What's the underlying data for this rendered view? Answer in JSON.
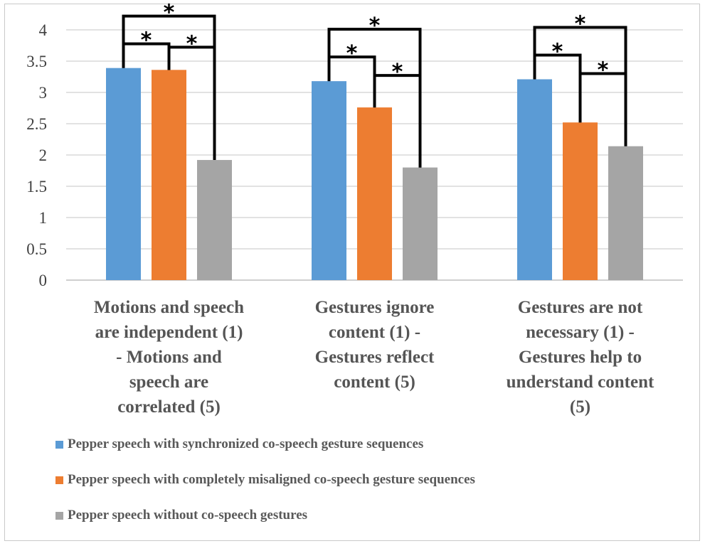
{
  "chart_data": {
    "type": "bar",
    "title": "",
    "xlabel": "",
    "ylabel": "",
    "ylim": [
      0,
      4
    ],
    "yticks": [
      "0",
      "0.5",
      "1",
      "1.5",
      "2",
      "2.5",
      "3",
      "3.5",
      "4"
    ],
    "grid": true,
    "legend_position": "bottom",
    "categories": [
      [
        "Motions and speech",
        "are independent (1)",
        "- Motions and",
        "speech are",
        "correlated (5)"
      ],
      [
        "Gestures ignore",
        "content (1) -",
        "Gestures reflect",
        "content (5)"
      ],
      [
        "Gestures are not",
        "necessary (1) -",
        "Gestures help to",
        "understand content",
        "(5)"
      ]
    ],
    "series": [
      {
        "name": "Pepper speech with synchronized co-speech gesture sequences",
        "color": "#5b9bd5",
        "values": [
          3.39,
          3.18,
          3.21
        ]
      },
      {
        "name": "Pepper speech with completely misaligned co-speech gesture sequences",
        "color": "#ed7d31",
        "values": [
          3.36,
          2.76,
          2.52
        ]
      },
      {
        "name": "Pepper speech without co-speech gestures",
        "color": "#a5a5a5",
        "values": [
          1.92,
          1.8,
          2.14
        ]
      }
    ],
    "significance": [
      {
        "group": 0,
        "pairs": [
          [
            0,
            1,
            "*"
          ],
          [
            1,
            2,
            "*"
          ],
          [
            0,
            2,
            "*"
          ]
        ]
      },
      {
        "group": 1,
        "pairs": [
          [
            0,
            1,
            "*"
          ],
          [
            1,
            2,
            "*"
          ],
          [
            0,
            2,
            "*"
          ]
        ]
      },
      {
        "group": 2,
        "pairs": [
          [
            0,
            1,
            "*"
          ],
          [
            1,
            2,
            "*"
          ],
          [
            0,
            2,
            "*"
          ]
        ]
      }
    ]
  }
}
